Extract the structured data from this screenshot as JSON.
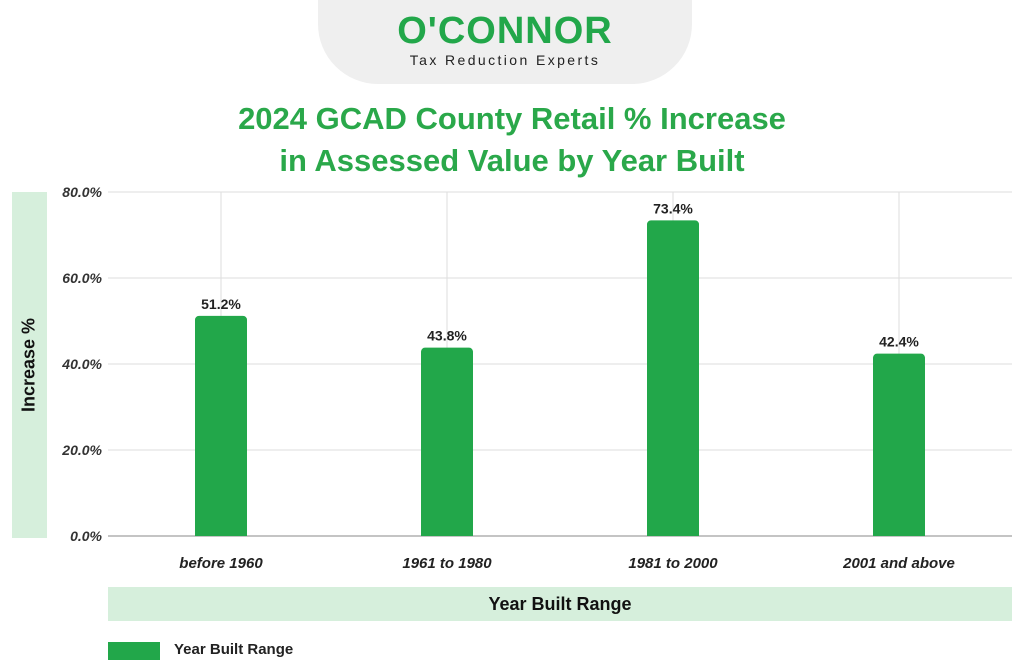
{
  "logo": {
    "name": "O'CONNOR",
    "tagline": "Tax Reduction Experts"
  },
  "chart_data": {
    "type": "bar",
    "title": "2024 GCAD County Retail % Increase in Assessed Value by Year Built",
    "title_lines": [
      "2024 GCAD County Retail % Increase",
      "in Assessed Value by Year Built"
    ],
    "xlabel": "Year Built Range",
    "ylabel": "Increase %",
    "categories": [
      "before 1960",
      "1961 to 1980",
      "1981 to 2000",
      "2001 and above"
    ],
    "series": [
      {
        "name": "Year Built Range",
        "values": [
          51.2,
          43.8,
          73.4,
          42.4
        ],
        "labels": [
          "51.2%",
          "43.8%",
          "73.4%",
          "42.4%"
        ]
      }
    ],
    "ylim": [
      0,
      80
    ],
    "yticks": [
      0,
      20,
      40,
      60,
      80
    ],
    "ytick_labels": [
      "0.0%",
      "20.0%",
      "40.0%",
      "60.0%",
      "80.0%"
    ],
    "grid": true,
    "legend_position": "bottom-left",
    "bar_color": "#22a74a",
    "grid_color": "#dddddd"
  }
}
